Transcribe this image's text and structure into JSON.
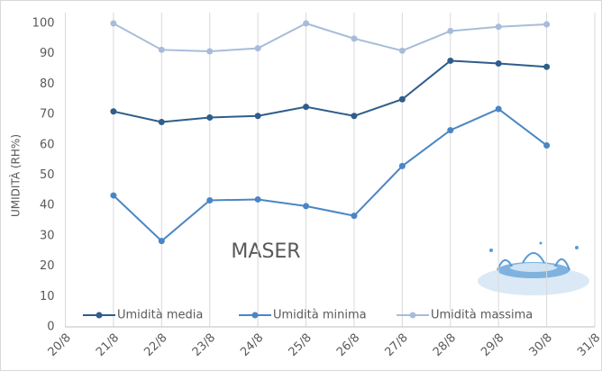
{
  "chart_data": {
    "type": "line",
    "y_label": "UMIDITÀ (RH%)",
    "annotation": "MASER",
    "categories": [
      "20/8",
      "21/8",
      "22/8",
      "23/8",
      "24/8",
      "25/8",
      "26/8",
      "27/8",
      "28/8",
      "29/8",
      "30/8",
      "31/8"
    ],
    "series": [
      {
        "name": "Umidità media",
        "color": "#2f5d8c",
        "values": [
          null,
          71,
          67.5,
          69,
          69.5,
          72.5,
          69.5,
          75,
          87.7,
          86.8,
          85.7,
          null
        ]
      },
      {
        "name": "Umidità minima",
        "color": "#4a86c5",
        "values": [
          null,
          43.3,
          28.3,
          41.7,
          42,
          39.8,
          36.6,
          53,
          64.8,
          71.8,
          59.8,
          null
        ]
      },
      {
        "name": "Umidità massima",
        "color": "#a8bcd9",
        "values": [
          null,
          100,
          91.3,
          90.8,
          91.8,
          100,
          95,
          91,
          97.5,
          98.9,
          99.7,
          null
        ]
      }
    ],
    "ylim": [
      0,
      100
    ],
    "yticks": [
      0,
      10,
      20,
      30,
      40,
      50,
      60,
      70,
      80,
      90,
      100
    ],
    "grid": true
  }
}
